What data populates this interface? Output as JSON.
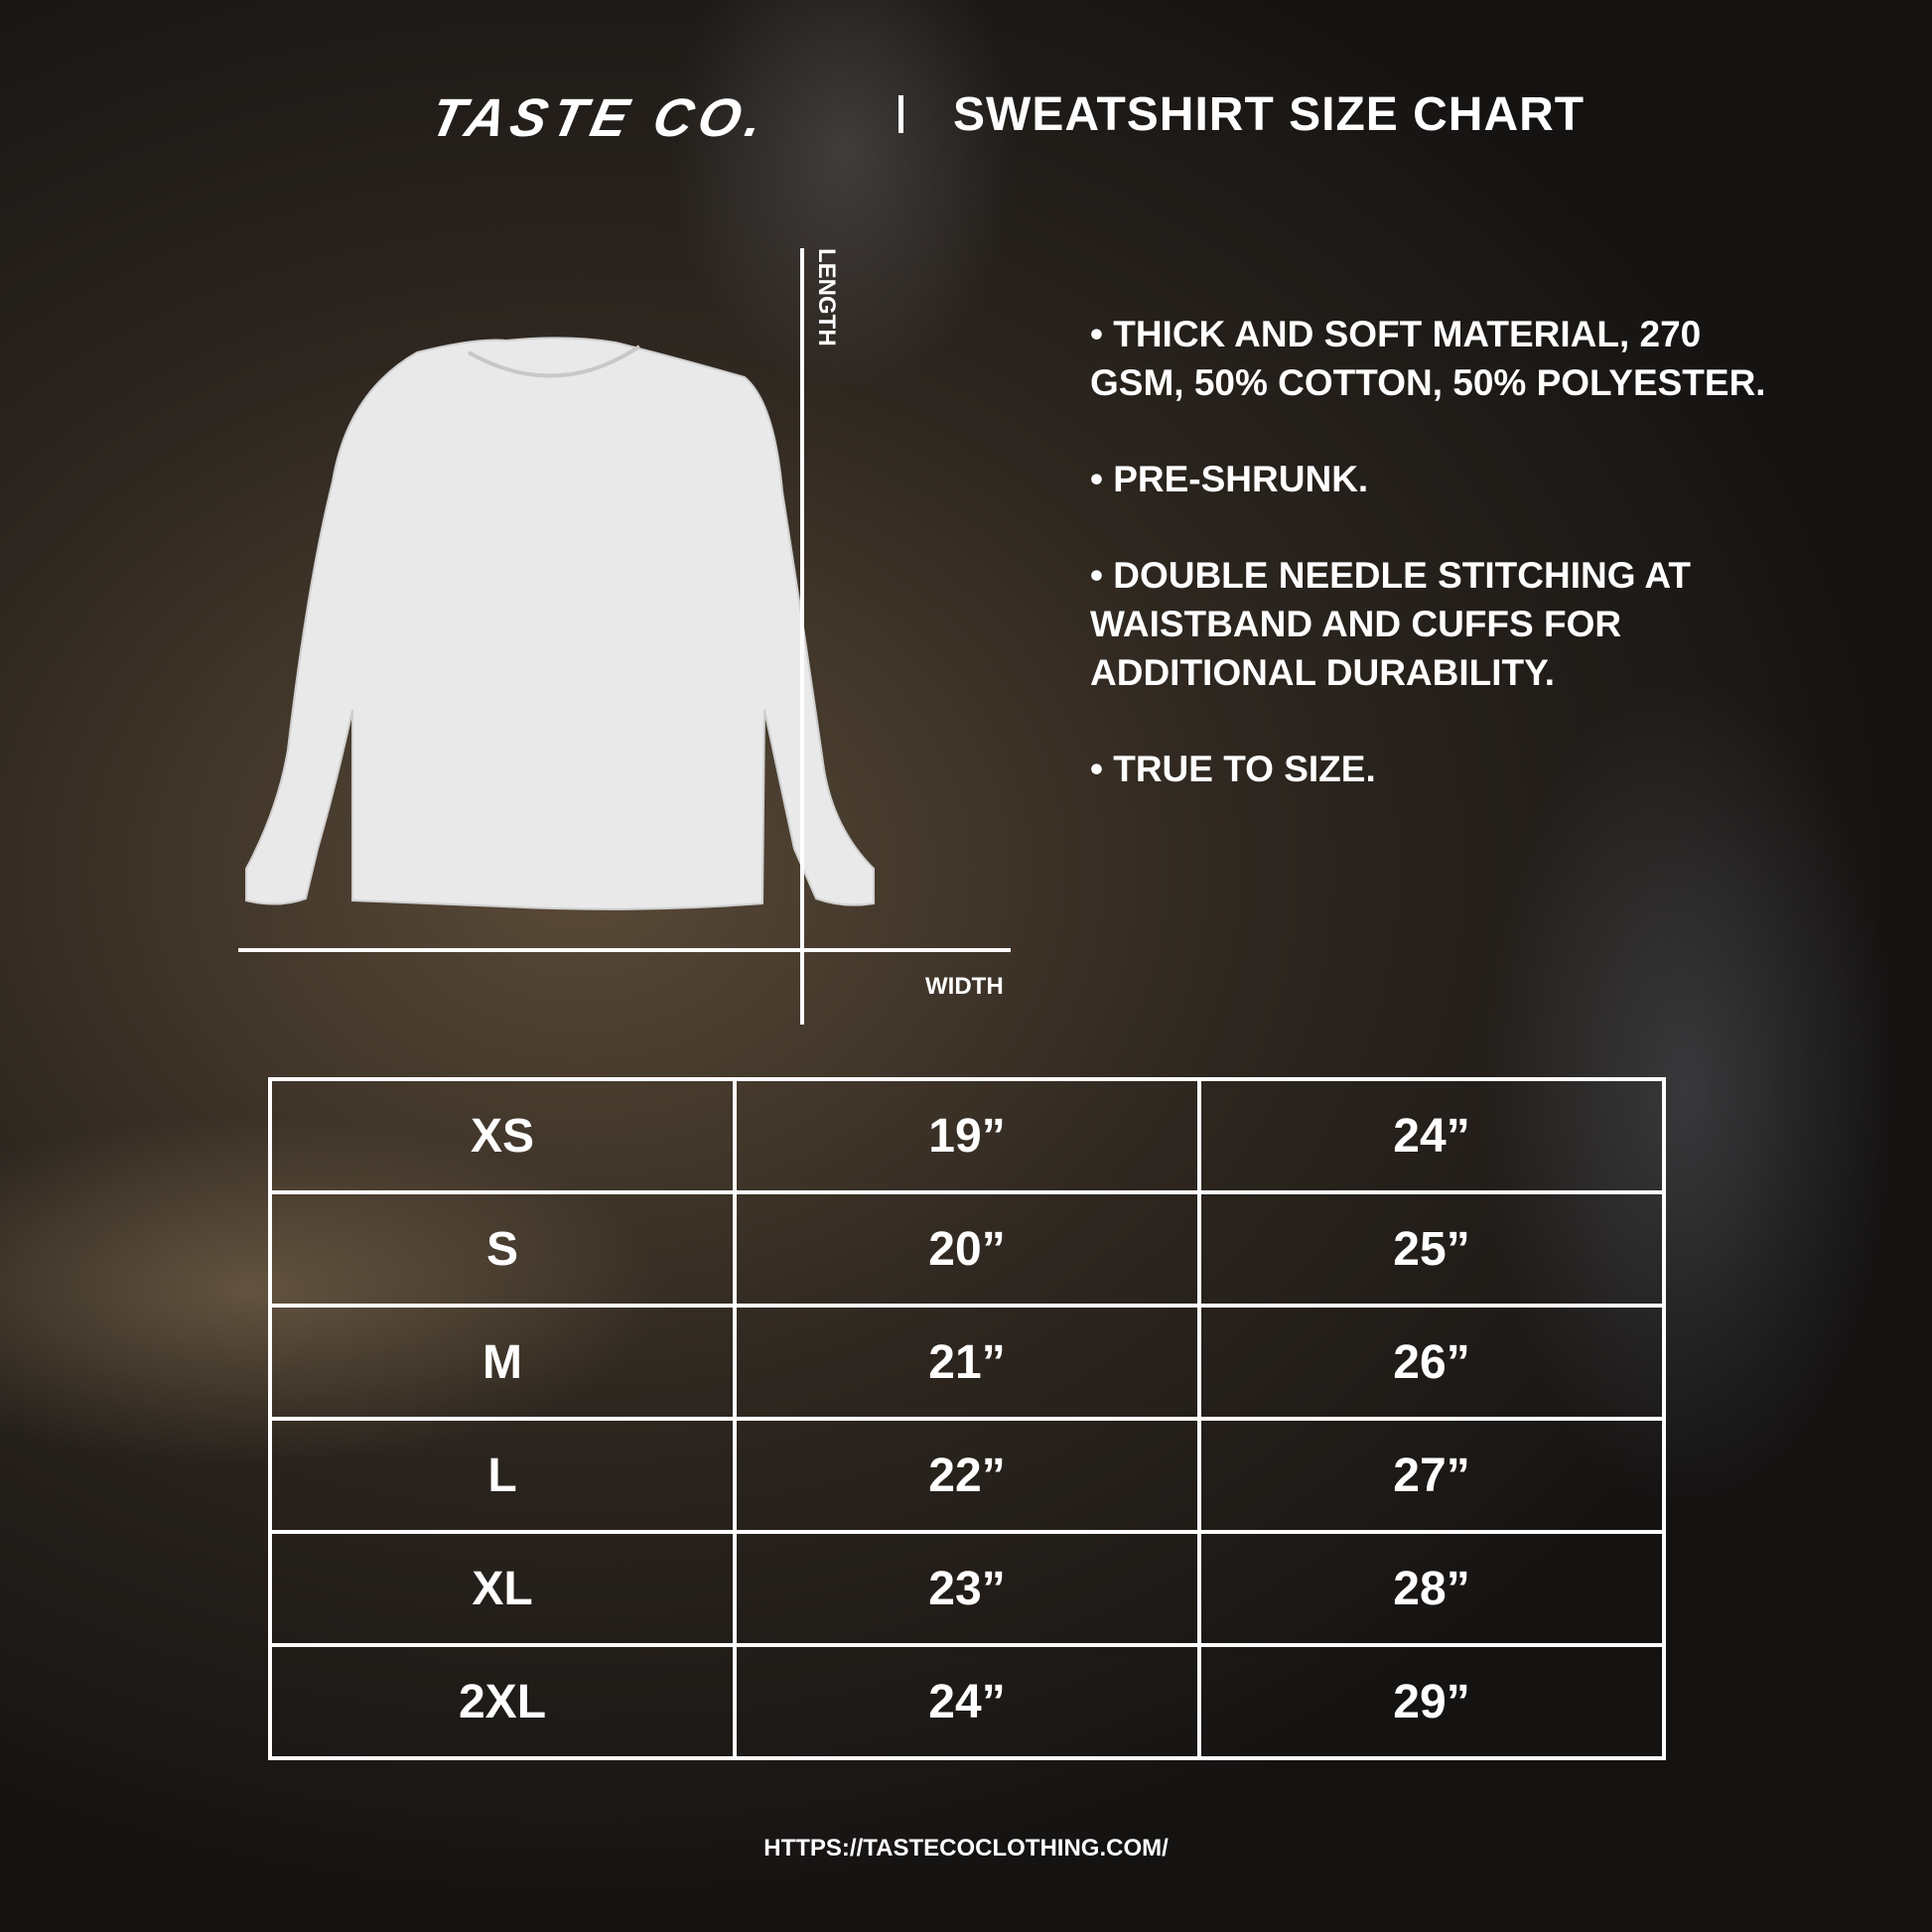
{
  "header": {
    "logo": "TASTE CO.",
    "title": "SWEATSHIRT SIZE CHART"
  },
  "diagram": {
    "length_label": "LENGTH",
    "width_label": "WIDTH"
  },
  "features": [
    "• THICK AND SOFT MATERIAL, 270 GSM, 50% COTTON, 50% POLYESTER.",
    "• PRE-SHRUNK.",
    "• DOUBLE NEEDLE STITCHING AT WAISTBAND AND CUFFS FOR ADDITIONAL DURABILITY.",
    "• TRUE TO SIZE."
  ],
  "size_table": [
    [
      "XS",
      "19”",
      "24”"
    ],
    [
      "S",
      "20”",
      "25”"
    ],
    [
      "M",
      "21”",
      "26”"
    ],
    [
      "L",
      "22”",
      "27”"
    ],
    [
      "XL",
      "23”",
      "28”"
    ],
    [
      "2XL",
      "24”",
      "29”"
    ]
  ],
  "footer": {
    "url": "HTTPS://TASTECOCLOTHING.COM/"
  }
}
